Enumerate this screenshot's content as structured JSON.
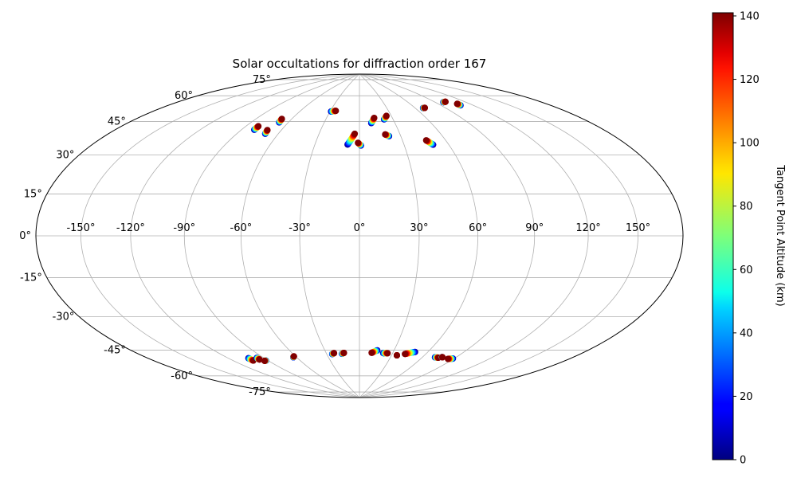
{
  "chart_data": {
    "type": "scatter",
    "projection": "hammer",
    "title": "Solar occultations for diffraction order 167",
    "grid": true,
    "lon_ticks": [
      -150,
      -120,
      -90,
      -60,
      -30,
      0,
      30,
      60,
      90,
      120,
      150
    ],
    "lon_tick_labels": [
      "-150°",
      "-120°",
      "-90°",
      "-60°",
      "-30°",
      "0°",
      "30°",
      "60°",
      "90°",
      "120°",
      "150°"
    ],
    "lat_ticks": [
      -75,
      -60,
      -45,
      -30,
      -15,
      0,
      15,
      30,
      45,
      60,
      75
    ],
    "lat_tick_labels": [
      "-75°",
      "-60°",
      "-45°",
      "-30°",
      "-15°",
      "0°",
      "15°",
      "30°",
      "45°",
      "60°",
      "75°"
    ],
    "colorbar": {
      "label": "Tangent Point Altitude (km)",
      "range": [
        0,
        141
      ],
      "colormap": "jet",
      "ticks": [
        0,
        20,
        40,
        60,
        80,
        100,
        120,
        140
      ],
      "tick_labels": [
        "0",
        "20",
        "40",
        "60",
        "80",
        "100",
        "120",
        "140"
      ]
    },
    "tracks": [
      {
        "start": [
          -80.5,
          52.5
        ],
        "end": [
          -80.5,
          54.5
        ]
      },
      {
        "start": [
          -69.5,
          51
        ],
        "end": [
          -70.5,
          53
        ]
      },
      {
        "start": [
          -67.5,
          57.5
        ],
        "end": [
          -68.5,
          59.5
        ]
      },
      {
        "start": [
          -29,
          65.5
        ],
        "end": [
          -24.5,
          66
        ]
      },
      {
        "start": [
          -8,
          47
        ],
        "end": [
          -3.5,
          53
        ]
      },
      {
        "start": [
          1,
          46.5
        ],
        "end": [
          -1,
          48
        ]
      },
      {
        "start": [
          10,
          59
        ],
        "end": [
          13.5,
          62
        ]
      },
      {
        "start": [
          22,
          61
        ],
        "end": [
          25.5,
          63
        ]
      },
      {
        "start": [
          21.5,
          51.5
        ],
        "end": [
          19,
          52.5
        ]
      },
      {
        "start": [
          49.5,
          46
        ],
        "end": [
          46.5,
          48.5
        ]
      },
      {
        "start": [
          68,
          66
        ],
        "end": [
          70,
          66
        ]
      },
      {
        "start": [
          98.5,
          67.5
        ],
        "end": [
          101.5,
          67.5
        ]
      },
      {
        "start": [
          108.5,
          64.5
        ],
        "end": [
          108.5,
          65.5
        ]
      },
      {
        "start": [
          -103.5,
          -60
        ],
        "end": [
          -103,
          -61.5
        ]
      },
      {
        "start": [
          -96,
          -60.5
        ],
        "end": [
          -96,
          -61.5
        ]
      },
      {
        "start": [
          -92,
          -62.5
        ],
        "end": [
          -93.5,
          -62.5
        ]
      },
      {
        "start": [
          -63,
          -62.5
        ],
        "end": [
          -61.5,
          -62
        ]
      },
      {
        "start": [
          -25,
          -62
        ],
        "end": [
          -23,
          -61.5
        ]
      },
      {
        "start": [
          -16,
          -62
        ],
        "end": [
          -14,
          -61.5
        ]
      },
      {
        "start": [
          15.5,
          -60
        ],
        "end": [
          11,
          -61.5
        ]
      },
      {
        "start": [
          21.5,
          -61.5
        ],
        "end": [
          25.5,
          -61.5
        ]
      },
      {
        "start": [
          35,
          -62.5
        ],
        "end": [
          35,
          -62.5
        ]
      },
      {
        "start": [
          49,
          -60
        ],
        "end": [
          41.5,
          -61.5
        ]
      },
      {
        "start": [
          71.5,
          -62
        ],
        "end": [
          75,
          -62
        ]
      },
      {
        "start": [
          77.5,
          -61.5
        ],
        "end": [
          78,
          -61.5
        ]
      },
      {
        "start": [
          89,
          -61.5
        ],
        "end": [
          85,
          -62
        ]
      }
    ]
  }
}
